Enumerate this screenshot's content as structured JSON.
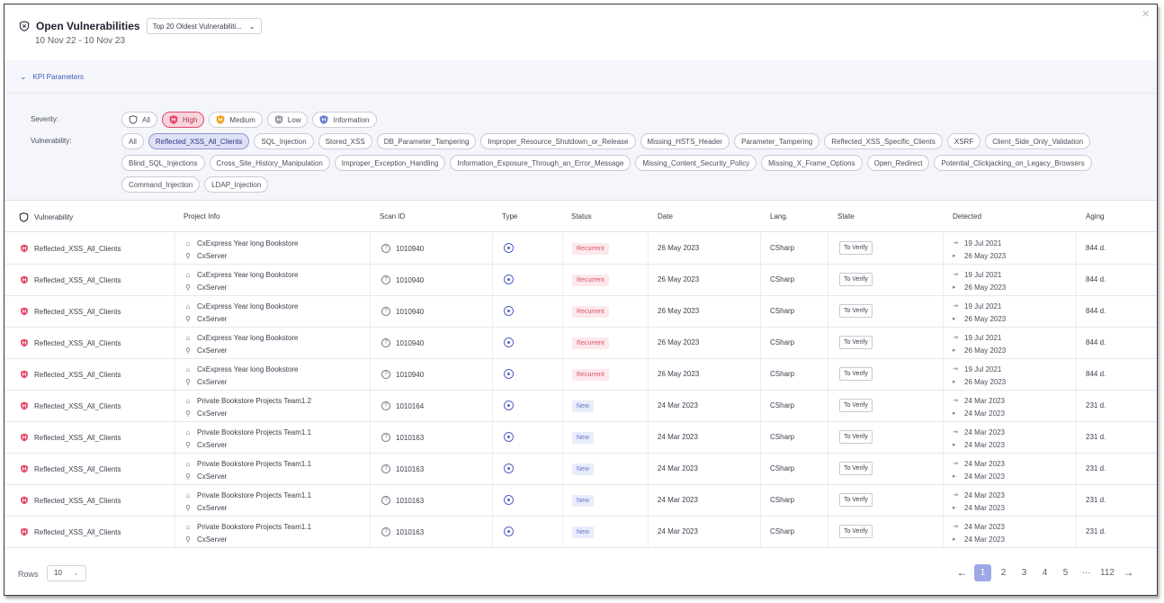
{
  "header": {
    "title": "Open Vulnerabilities",
    "kpi_select": "Top 20 Oldest Vulnerabiliti...",
    "date_range": "10 Nov 22 - 10 Nov 23",
    "close": "×"
  },
  "kpi_parameters": {
    "label": "KPI Parameters"
  },
  "filters": {
    "severity_label": "Severity:",
    "vulnerability_label": "Vulnerability:",
    "severity": [
      {
        "label": "All",
        "active": false,
        "icon": "shield-outline-icon",
        "color": "#4b4f5c"
      },
      {
        "label": "High",
        "active": true,
        "icon": "high-severity-icon",
        "color": "#e5486a"
      },
      {
        "label": "Medium",
        "active": false,
        "icon": "medium-severity-icon",
        "color": "#f0a526"
      },
      {
        "label": "Low",
        "active": false,
        "icon": "low-severity-icon",
        "color": "#9aa0ab"
      },
      {
        "label": "Information",
        "active": false,
        "icon": "info-severity-icon",
        "color": "#6a7fd0"
      }
    ],
    "vulnerabilities": [
      {
        "label": "All",
        "active": false
      },
      {
        "label": "Reflected_XSS_All_Clients",
        "active": true
      },
      {
        "label": "SQL_Injection",
        "active": false
      },
      {
        "label": "Stored_XSS",
        "active": false
      },
      {
        "label": "DB_Parameter_Tampering",
        "active": false
      },
      {
        "label": "Improper_Resource_Shutdown_or_Release",
        "active": false
      },
      {
        "label": "Missing_HSTS_Header",
        "active": false
      },
      {
        "label": "Parameter_Tampering",
        "active": false
      },
      {
        "label": "Reflected_XSS_Specific_Clients",
        "active": false
      },
      {
        "label": "XSRF",
        "active": false
      },
      {
        "label": "Client_Side_Only_Validation",
        "active": false
      },
      {
        "label": "Blind_SQL_Injections",
        "active": false
      },
      {
        "label": "Cross_Site_History_Manipulation",
        "active": false
      },
      {
        "label": "Improper_Exception_Handling",
        "active": false
      },
      {
        "label": "Information_Exposure_Through_an_Error_Message",
        "active": false
      },
      {
        "label": "Missing_Content_Security_Policy",
        "active": false
      },
      {
        "label": "Missing_X_Frame_Options",
        "active": false
      },
      {
        "label": "Open_Redirect",
        "active": false
      },
      {
        "label": "Potential_Clickjacking_on_Legacy_Browsers",
        "active": false
      },
      {
        "label": "Command_Injection",
        "active": false
      },
      {
        "label": "LDAP_Injection",
        "active": false
      }
    ]
  },
  "table": {
    "columns": {
      "vulnerability": "Vulnerability",
      "project_info": "Project Info",
      "scan_id": "Scan ID",
      "type": "Type",
      "status": "Status",
      "date": "Date",
      "lang": "Lang.",
      "state": "State",
      "detected": "Detected",
      "aging": "Aging"
    },
    "rows": [
      {
        "vulnerability": "Reflected_XSS_All_Clients",
        "project": "CxExpress Year long Bookstore",
        "owner": "CxServer",
        "scan_id": "1010940",
        "status": "Recurrent",
        "date": "26 May 2023",
        "lang": "CSharp",
        "state": "To Verify",
        "first_detected": "19 Jul 2021",
        "last_detected": "26 May 2023",
        "aging": "844 d."
      },
      {
        "vulnerability": "Reflected_XSS_All_Clients",
        "project": "CxExpress Year long Bookstore",
        "owner": "CxServer",
        "scan_id": "1010940",
        "status": "Recurrent",
        "date": "26 May 2023",
        "lang": "CSharp",
        "state": "To Verify",
        "first_detected": "19 Jul 2021",
        "last_detected": "26 May 2023",
        "aging": "844 d."
      },
      {
        "vulnerability": "Reflected_XSS_All_Clients",
        "project": "CxExpress Year long Bookstore",
        "owner": "CxServer",
        "scan_id": "1010940",
        "status": "Recurrent",
        "date": "26 May 2023",
        "lang": "CSharp",
        "state": "To Verify",
        "first_detected": "19 Jul 2021",
        "last_detected": "26 May 2023",
        "aging": "844 d."
      },
      {
        "vulnerability": "Reflected_XSS_All_Clients",
        "project": "CxExpress Year long Bookstore",
        "owner": "CxServer",
        "scan_id": "1010940",
        "status": "Recurrent",
        "date": "26 May 2023",
        "lang": "CSharp",
        "state": "To Verify",
        "first_detected": "19 Jul 2021",
        "last_detected": "26 May 2023",
        "aging": "844 d."
      },
      {
        "vulnerability": "Reflected_XSS_All_Clients",
        "project": "CxExpress Year long Bookstore",
        "owner": "CxServer",
        "scan_id": "1010940",
        "status": "Recurrent",
        "date": "26 May 2023",
        "lang": "CSharp",
        "state": "To Verify",
        "first_detected": "19 Jul 2021",
        "last_detected": "26 May 2023",
        "aging": "844 d."
      },
      {
        "vulnerability": "Reflected_XSS_All_Clients",
        "project": "Private Bookstore Projects Team1.2",
        "owner": "CxServer",
        "scan_id": "1010164",
        "status": "New",
        "date": "24 Mar 2023",
        "lang": "CSharp",
        "state": "To Verify",
        "first_detected": "24 Mar 2023",
        "last_detected": "24 Mar 2023",
        "aging": "231 d."
      },
      {
        "vulnerability": "Reflected_XSS_All_Clients",
        "project": "Private Bookstore Projects Team1.1",
        "owner": "CxServer",
        "scan_id": "1010163",
        "status": "New",
        "date": "24 Mar 2023",
        "lang": "CSharp",
        "state": "To Verify",
        "first_detected": "24 Mar 2023",
        "last_detected": "24 Mar 2023",
        "aging": "231 d."
      },
      {
        "vulnerability": "Reflected_XSS_All_Clients",
        "project": "Private Bookstore Projects Team1.1",
        "owner": "CxServer",
        "scan_id": "1010163",
        "status": "New",
        "date": "24 Mar 2023",
        "lang": "CSharp",
        "state": "To Verify",
        "first_detected": "24 Mar 2023",
        "last_detected": "24 Mar 2023",
        "aging": "231 d."
      },
      {
        "vulnerability": "Reflected_XSS_All_Clients",
        "project": "Private Bookstore Projects Team1.1",
        "owner": "CxServer",
        "scan_id": "1010163",
        "status": "New",
        "date": "24 Mar 2023",
        "lang": "CSharp",
        "state": "To Verify",
        "first_detected": "24 Mar 2023",
        "last_detected": "24 Mar 2023",
        "aging": "231 d."
      },
      {
        "vulnerability": "Reflected_XSS_All_Clients",
        "project": "Private Bookstore Projects Team1.1",
        "owner": "CxServer",
        "scan_id": "1010163",
        "status": "New",
        "date": "24 Mar 2023",
        "lang": "CSharp",
        "state": "To Verify",
        "first_detected": "24 Mar 2023",
        "last_detected": "24 Mar 2023",
        "aging": "231 d."
      }
    ]
  },
  "footer": {
    "rows_label": "Rows",
    "rows_value": "10",
    "pages": [
      "1",
      "2",
      "3",
      "4",
      "5",
      "···",
      "112"
    ],
    "current_page": "1",
    "prev": "←",
    "next": "→"
  },
  "colors": {
    "accent": "#4256b6",
    "high": "#e5486a",
    "active_page": "#9ea8e6"
  }
}
